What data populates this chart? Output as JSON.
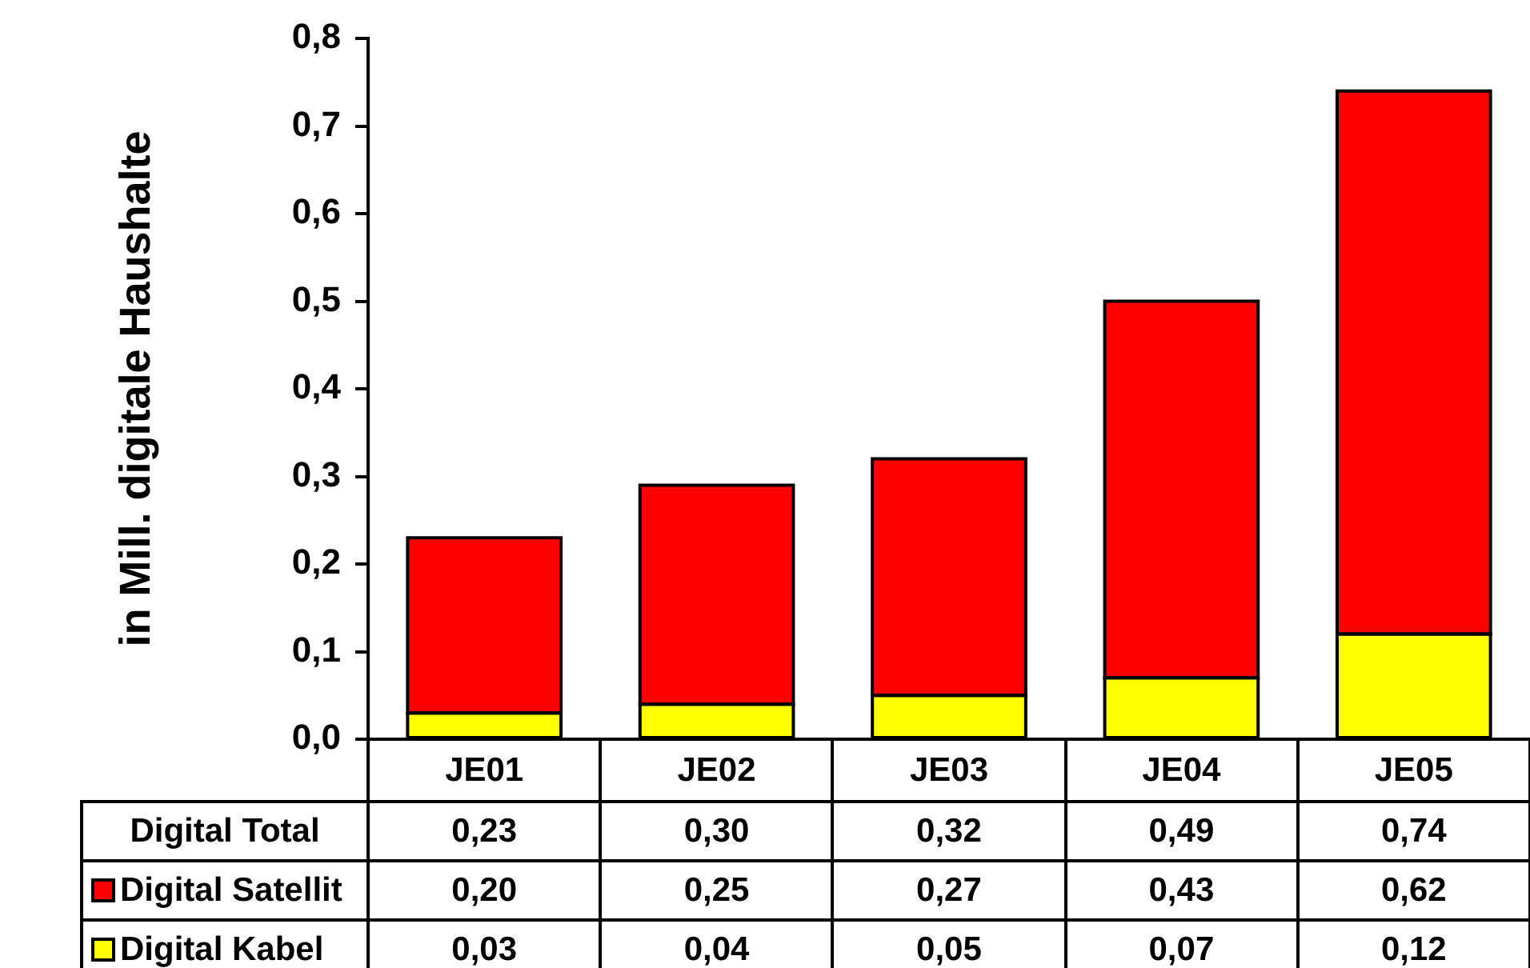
{
  "chart_data": {
    "type": "bar",
    "stacked": true,
    "ylabel": "in Mill. digitale Haushalte",
    "categories": [
      "JE01",
      "JE02",
      "JE03",
      "JE04",
      "JE05"
    ],
    "series": [
      {
        "name": "Digital Kabel",
        "color": "#ffff00",
        "values": [
          0.03,
          0.04,
          0.05,
          0.07,
          0.12
        ],
        "value_labels": [
          "0,03",
          "0,04",
          "0,05",
          "0,07",
          "0,12"
        ]
      },
      {
        "name": "Digital Satellit",
        "color": "#ff0000",
        "values": [
          0.2,
          0.25,
          0.27,
          0.43,
          0.62
        ],
        "value_labels": [
          "0,20",
          "0,25",
          "0,27",
          "0,43",
          "0,62"
        ]
      }
    ],
    "totals": [
      "0,23",
      "0,30",
      "0,32",
      "0,49",
      "0,74"
    ],
    "annotations": [
      "Digital Total"
    ],
    "ylim": [
      0,
      0.8
    ],
    "yticks": [
      {
        "value": 0,
        "label": "0,0"
      },
      {
        "value": 0.1,
        "label": "0,1"
      },
      {
        "value": 0.2,
        "label": "0,2"
      },
      {
        "value": 0.3,
        "label": "0,3"
      },
      {
        "value": 0.4,
        "label": "0,4"
      },
      {
        "value": 0.5,
        "label": "0,5"
      },
      {
        "value": 0.6,
        "label": "0,6"
      },
      {
        "value": 0.7,
        "label": "0,7"
      },
      {
        "value": 0.8,
        "label": "0,8"
      }
    ],
    "legend": "bottom"
  }
}
